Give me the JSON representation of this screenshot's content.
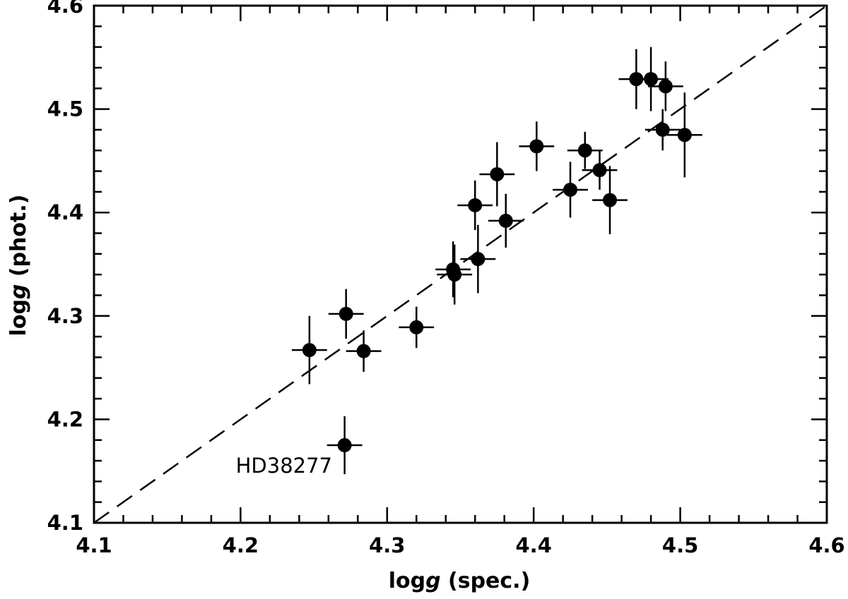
{
  "chart_data": {
    "type": "scatter",
    "title": "",
    "xlabel": {
      "prefix": "log",
      "var": "g",
      "suffix": " (spec.)"
    },
    "ylabel": {
      "prefix": "log",
      "var": "g",
      "suffix": " (phot.)"
    },
    "xlim": [
      4.1,
      4.6
    ],
    "ylim": [
      4.1,
      4.6
    ],
    "x_ticks": [
      "4.1",
      "4.2",
      "4.3",
      "4.4",
      "4.5",
      "4.6"
    ],
    "y_ticks": [
      "4.1",
      "4.2",
      "4.3",
      "4.4",
      "4.5",
      "4.6"
    ],
    "grid": false,
    "reference_line": {
      "style": "dashed",
      "from": [
        4.1,
        4.1
      ],
      "to": [
        4.6,
        4.6
      ]
    },
    "points": [
      {
        "x": 4.271,
        "y": 4.175,
        "xerr": 0.012,
        "yerr": 0.028
      },
      {
        "x": 4.247,
        "y": 4.267,
        "xerr": 0.012,
        "yerr": 0.033
      },
      {
        "x": 4.272,
        "y": 4.302,
        "xerr": 0.012,
        "yerr": 0.024
      },
      {
        "x": 4.284,
        "y": 4.266,
        "xerr": 0.012,
        "yerr": 0.02
      },
      {
        "x": 4.32,
        "y": 4.289,
        "xerr": 0.012,
        "yerr": 0.02
      },
      {
        "x": 4.345,
        "y": 4.345,
        "xerr": 0.012,
        "yerr": 0.027
      },
      {
        "x": 4.346,
        "y": 4.34,
        "xerr": 0.012,
        "yerr": 0.029
      },
      {
        "x": 4.362,
        "y": 4.355,
        "xerr": 0.012,
        "yerr": 0.033
      },
      {
        "x": 4.36,
        "y": 4.407,
        "xerr": 0.012,
        "yerr": 0.024
      },
      {
        "x": 4.375,
        "y": 4.437,
        "xerr": 0.012,
        "yerr": 0.031
      },
      {
        "x": 4.381,
        "y": 4.392,
        "xerr": 0.012,
        "yerr": 0.026
      },
      {
        "x": 4.402,
        "y": 4.464,
        "xerr": 0.012,
        "yerr": 0.024
      },
      {
        "x": 4.425,
        "y": 4.422,
        "xerr": 0.012,
        "yerr": 0.027
      },
      {
        "x": 4.435,
        "y": 4.46,
        "xerr": 0.012,
        "yerr": 0.018
      },
      {
        "x": 4.445,
        "y": 4.441,
        "xerr": 0.012,
        "yerr": 0.019
      },
      {
        "x": 4.452,
        "y": 4.412,
        "xerr": 0.012,
        "yerr": 0.033
      },
      {
        "x": 4.47,
        "y": 4.529,
        "xerr": 0.012,
        "yerr": 0.029
      },
      {
        "x": 4.48,
        "y": 4.529,
        "xerr": 0.012,
        "yerr": 0.031
      },
      {
        "x": 4.49,
        "y": 4.522,
        "xerr": 0.012,
        "yerr": 0.024
      },
      {
        "x": 4.488,
        "y": 4.48,
        "xerr": 0.012,
        "yerr": 0.02
      },
      {
        "x": 4.503,
        "y": 4.475,
        "xerr": 0.012,
        "yerr": 0.041
      }
    ],
    "annotations": [
      {
        "text": "HD38277",
        "x": 4.271,
        "y": 4.175
      }
    ]
  }
}
